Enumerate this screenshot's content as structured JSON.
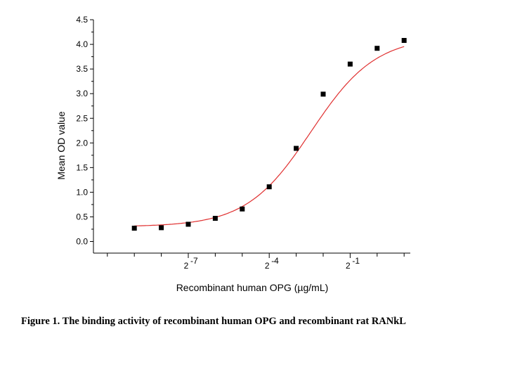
{
  "chart_data": {
    "type": "scatter",
    "xlabel": "Recombinant human OPG (µg/mL)",
    "ylabel": "Mean OD value",
    "x_scale": "log2",
    "x_ticks": [
      {
        "exp": -7,
        "base": "2",
        "sup": "-7"
      },
      {
        "exp": -4,
        "base": "2",
        "sup": "-4"
      },
      {
        "exp": -1,
        "base": "2",
        "sup": "-1"
      }
    ],
    "xlim_log2": [
      -10,
      1
    ],
    "ylim": [
      -0.25,
      4.5
    ],
    "y_ticks": [
      "0.0",
      "0.5",
      "1.0",
      "1.5",
      "2.0",
      "2.5",
      "3.0",
      "3.5",
      "4.0",
      "4.5"
    ],
    "series": [
      {
        "x_log2": [
          -9,
          -8,
          -7,
          -6,
          -5,
          -4,
          -3,
          -2,
          -1,
          0
        ],
        "y": [
          0.27,
          0.28,
          0.35,
          0.47,
          0.66,
          1.11,
          1.89,
          2.99,
          3.6,
          3.92
        ],
        "extra_point": {
          "x_log2": 1.0,
          "y": 4.08
        },
        "color": "#000000"
      }
    ],
    "fit_curve": {
      "type": "4PL",
      "bottom": 0.3,
      "top": 4.16,
      "x50_log2": -2.45,
      "hill_slope_log2": 0.83,
      "color": "#e03030"
    }
  },
  "caption": "Figure 1. The binding activity of recombinant human OPG and recombinant rat RANkL"
}
